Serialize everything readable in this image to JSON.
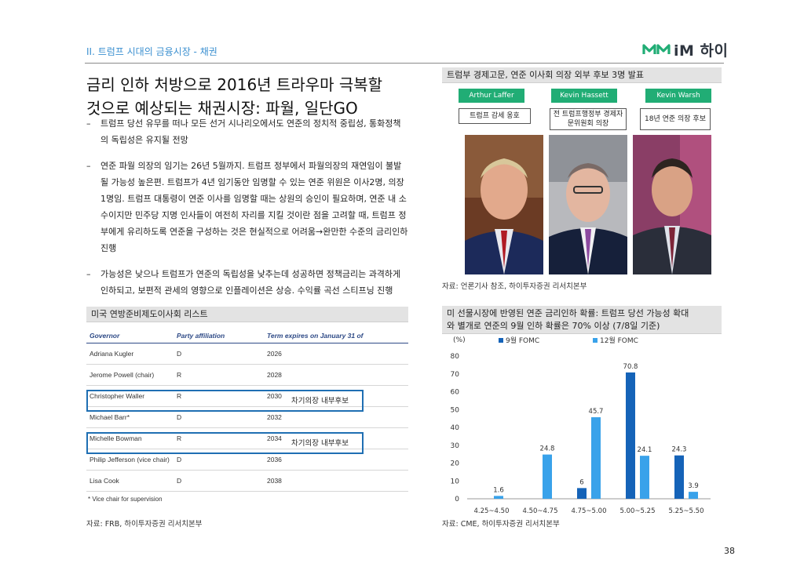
{
  "header": {
    "section_label": "II. 트럼프 시대의 금융시장 - 채권",
    "logo_text": "iM 하이",
    "logo_icon": "im-logo-icon"
  },
  "headline": {
    "line1": "금리 인하 처방으로 2016년 트라우마 극복할",
    "line2": "것으로 예상되는 채권시장: 파월, 일단GO"
  },
  "bullets": [
    "트럼프 당선 유무를 떠나 모든 선거 시나리오에서도 연준의 정치적 중립성, 통화정책의 독립성은 유지될 전망",
    "연준 파월 의장의 임기는 26년 5월까지. 트럼프 정부에서 파월의장의 재연임이 불발될 가능성 높은편. 트럼프가 4년 임기동안 임명할 수 있는 연준 위원은 이사2명, 의장 1명임. 트럼프 대통령이 연준 이사를 임명할 때는 상원의 승인이 필요하며, 연준 내 소수이지만 민주당 지명 인사들이 여전히 자리를 지킬 것이란 점을 고려할 때, 트럼프 정부에게 유리하도록 연준을 구성하는 것은 현실적으로 어려움→완만한 수준의 금리인하 진행",
    "가능성은 낮으나 트럼프가 연준의 독립성을 낮추는데 성공하면 정책금리는 과격하게 인하되고, 보편적 관세의 영향으로 인플레이션은 상승. 수익률 곡선 스티프닝 진행"
  ],
  "fed_table": {
    "title": "미국 연방준비제도이사회 리스트",
    "headers": [
      "Governor",
      "Party affiliation",
      "Term expires on January 31 of"
    ],
    "rows": [
      [
        "Adriana Kugler",
        "D",
        "2026"
      ],
      [
        "Jerome Powell (chair)",
        "R",
        "2028"
      ],
      [
        "Christopher Waller",
        "R",
        "2030"
      ],
      [
        "Michael Barr*",
        "D",
        "2032"
      ],
      [
        "Michelle Bowman",
        "R",
        "2034"
      ],
      [
        "Philip Jefferson (vice chair)",
        "D",
        "2036"
      ],
      [
        "Lisa Cook",
        "D",
        "2038"
      ]
    ],
    "note": "*  Vice chair for supervision",
    "highlight_label": "차기의장 내부후보",
    "source": "자료: FRB, 하이투자증권 리서치본부"
  },
  "candidates": {
    "title": "트럼부 경제고문, 연준 이사회 의장 외부 후보 3명 발표",
    "people": [
      {
        "name": "Arthur Laffer",
        "desc": "트럼프 감세 옹호"
      },
      {
        "name": "Kevin Hassett",
        "desc": "전 트럼프행정부 경제자문위원회 의장"
      },
      {
        "name": "Kevin Warsh",
        "desc": "18년 연준 의장 후보"
      }
    ],
    "source": "자료: 언론기사 참조, 하이투자증권 리서치본부"
  },
  "rate_chart": {
    "title_line1": "미 선물시장에 반영된 연준 금리인하 확률: 트럼프 당선 가능성 확대",
    "title_line2": "와 별개로 연준의 9월 인하 확률은 70% 이상 (7/8일 기준)",
    "source": "자료: CME, 하이투자증권 리서치본부"
  },
  "chart_data": {
    "type": "bar",
    "ylabel": "(%)",
    "ylim": [
      0,
      80
    ],
    "yticks": [
      0,
      10,
      20,
      30,
      40,
      50,
      60,
      70,
      80
    ],
    "categories": [
      "4.25~4.50",
      "4.50~4.75",
      "4.75~5.00",
      "5.00~5.25",
      "5.25~5.50"
    ],
    "series": [
      {
        "name": "9월 FOMC",
        "color": "#1563b8",
        "values": [
          0,
          0,
          6,
          70.8,
          24.3
        ],
        "labels": [
          "",
          "",
          "6",
          "70.8",
          "24.3"
        ]
      },
      {
        "name": "12월 FOMC",
        "color": "#39a2ea",
        "values": [
          1.6,
          24.8,
          45.7,
          24.1,
          3.9
        ],
        "labels": [
          "1.6",
          "24.8",
          "45.7",
          "24.1",
          "3.9"
        ]
      }
    ],
    "legend": "top"
  },
  "page_number": "38"
}
